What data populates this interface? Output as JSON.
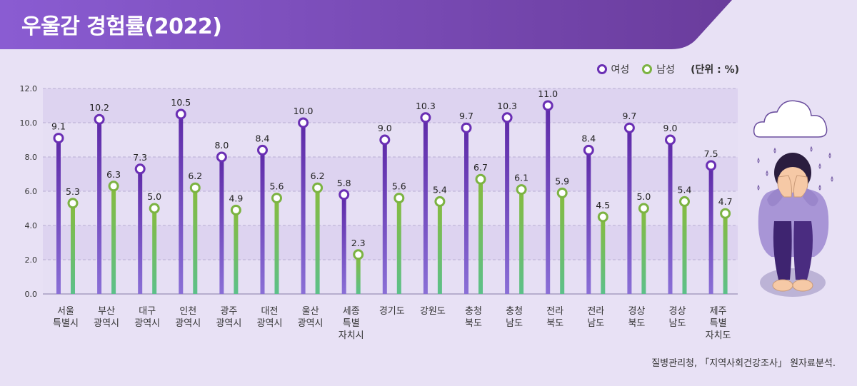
{
  "title": "우울감 경험률(2022)",
  "legend": {
    "female": "여성",
    "male": "남성",
    "unit": "(단위 : %)"
  },
  "source": "질병관리청, 「지역사회건강조사」 원자료분석.",
  "colors": {
    "female": "#6a2fb4",
    "male": "#7cb342",
    "banner_start": "#8b5fd0",
    "banner_end": "#6b3e9e"
  },
  "icons": [
    "rain-cloud-icon",
    "crying-person-icon"
  ],
  "chart_data": {
    "type": "lollipop",
    "ylim": [
      0,
      12
    ],
    "yticks": [
      "0.0",
      "2.0",
      "4.0",
      "6.0",
      "8.0",
      "10.0",
      "12.0"
    ],
    "categories": [
      [
        "서울",
        "특별시"
      ],
      [
        "부산",
        "광역시"
      ],
      [
        "대구",
        "광역시"
      ],
      [
        "인천",
        "광역시"
      ],
      [
        "광주",
        "광역시"
      ],
      [
        "대전",
        "광역시"
      ],
      [
        "울산",
        "광역시"
      ],
      [
        "세종",
        "특별",
        "자치시"
      ],
      [
        "경기도"
      ],
      [
        "강원도"
      ],
      [
        "충청",
        "북도"
      ],
      [
        "충청",
        "남도"
      ],
      [
        "전라",
        "북도"
      ],
      [
        "전라",
        "남도"
      ],
      [
        "경상",
        "북도"
      ],
      [
        "경상",
        "남도"
      ],
      [
        "제주",
        "특별",
        "자치도"
      ]
    ],
    "series": [
      {
        "name": "여성",
        "values": [
          9.1,
          10.2,
          7.3,
          10.5,
          8.0,
          8.4,
          10.0,
          5.8,
          9.0,
          10.3,
          9.7,
          10.3,
          11.0,
          8.4,
          9.7,
          9.0,
          7.5
        ],
        "labels": [
          "9.1",
          "10.2",
          "7.3",
          "10.5",
          "8.0",
          "8.4",
          "10.0",
          "5.8",
          "9.0",
          "10.3",
          "9.7",
          "10.3",
          "11.0",
          "8.4",
          "9.7",
          "9.0",
          "7.5"
        ]
      },
      {
        "name": "남성",
        "values": [
          5.3,
          6.3,
          5.0,
          6.2,
          4.9,
          5.6,
          6.2,
          2.3,
          5.6,
          5.4,
          6.7,
          6.1,
          5.9,
          4.5,
          5.0,
          5.4,
          4.7
        ],
        "labels": [
          "5.3",
          "6.3",
          "5.0",
          "6.2",
          "4.9",
          "5.6",
          "6.2",
          "2.3",
          "5.6",
          "5.4",
          "6.7",
          "6.1",
          "5.9",
          "4.5",
          "5.0",
          "5.4",
          "4.7"
        ]
      }
    ]
  }
}
